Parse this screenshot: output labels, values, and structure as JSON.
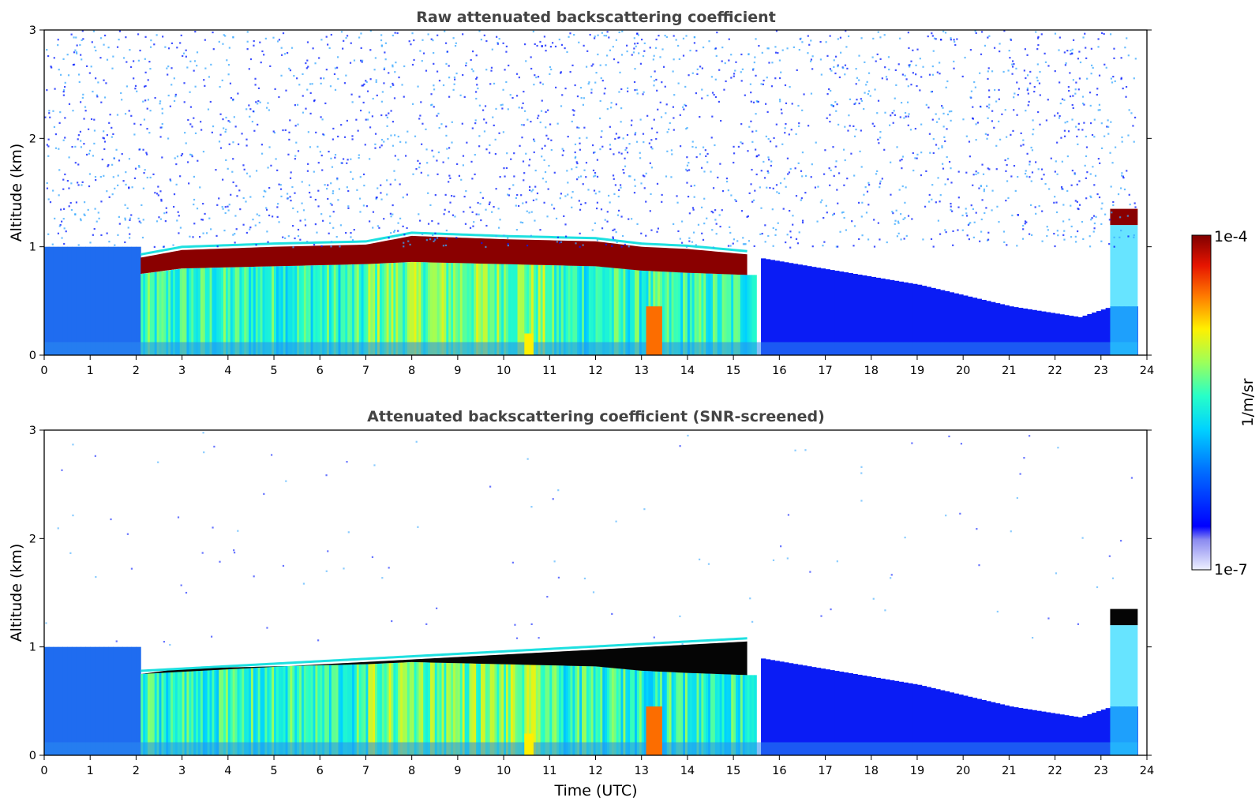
{
  "figure": {
    "colorbar": {
      "max_label": "1e-4",
      "min_label": "1e-7",
      "unit_label": "1/m/sr",
      "colormap": "jet-like (white → blue → cyan → green → yellow → red → dark red)",
      "scale": "log"
    },
    "x_label": "Time (UTC)"
  },
  "chart_data": [
    {
      "type": "heatmap",
      "title": "Raw attenuated backscattering coefficient",
      "xlabel": "",
      "ylabel": "Altitude (km)",
      "xlim": [
        0,
        24
      ],
      "ylim": [
        0,
        3
      ],
      "x_ticks": [
        "0",
        "1",
        "2",
        "3",
        "4",
        "5",
        "6",
        "7",
        "8",
        "9",
        "10",
        "11",
        "12",
        "13",
        "14",
        "15",
        "16",
        "17",
        "18",
        "19",
        "20",
        "21",
        "22",
        "23",
        "24"
      ],
      "y_ticks": [
        "0",
        "1",
        "2",
        "3"
      ],
      "features": [
        {
          "description": "cloud layer top (km)",
          "x": [
            2.1,
            3,
            5,
            7,
            8,
            10,
            12,
            13,
            14,
            15.3
          ],
          "y": [
            0.9,
            0.97,
            1.0,
            1.02,
            1.1,
            1.07,
            1.05,
            1.0,
            0.98,
            0.93
          ]
        },
        {
          "description": "cloud layer base (km)",
          "x": [
            2.1,
            3,
            5,
            7,
            8,
            10,
            12,
            13,
            14,
            15.3
          ],
          "y": [
            0.75,
            0.8,
            0.82,
            0.84,
            0.86,
            0.84,
            0.82,
            0.78,
            0.76,
            0.74
          ]
        },
        {
          "description": "late cloud 23.2-23.8 UTC altitude range (km)",
          "x": [
            23.2,
            23.8
          ],
          "y": [
            1.2,
            1.35
          ]
        }
      ],
      "noise": "high (sparse speckle above boundary layer)"
    },
    {
      "type": "heatmap",
      "title": "Attenuated backscattering coefficient (SNR-screened)",
      "xlabel": "Time (UTC)",
      "ylabel": "Altitude (km)",
      "xlim": [
        0,
        24
      ],
      "ylim": [
        0,
        3
      ],
      "x_ticks": [
        "0",
        "1",
        "2",
        "3",
        "4",
        "5",
        "6",
        "7",
        "8",
        "9",
        "10",
        "11",
        "12",
        "13",
        "14",
        "15",
        "16",
        "17",
        "18",
        "19",
        "20",
        "21",
        "22",
        "23",
        "24"
      ],
      "y_ticks": [
        "0",
        "1",
        "2",
        "3"
      ],
      "features": [
        {
          "description": "cloud layer (saturated region shown black)",
          "x": [
            2.1,
            15.3
          ],
          "y": [
            0.75,
            1.05
          ]
        },
        {
          "description": "late cloud 23.2-23.8 UTC altitude range (km)",
          "x": [
            23.2,
            23.8
          ],
          "y": [
            1.2,
            1.35
          ]
        }
      ],
      "noise": "low (screened)"
    }
  ]
}
